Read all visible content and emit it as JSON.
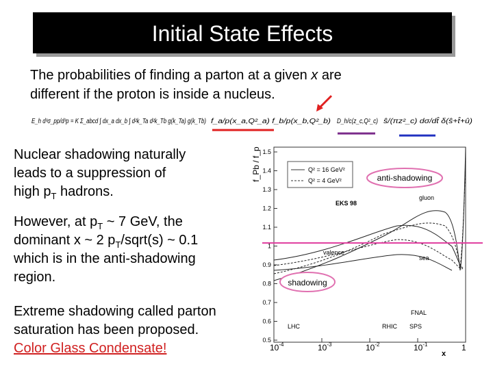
{
  "title": "Initial State Effects",
  "intro": {
    "line1": [
      "The probabilities of finding a parton at a given ",
      "x",
      " are"
    ],
    "line2": "different if the proton is inside a nucleus."
  },
  "formula": [
    "E_h d³σ_pp/d³p = K Σ_abcd ∫ dx_a dx_b ∫ d²k_Ta d²k_Tb g(k_Ta) g(k_Tb)",
    "f_a/p(x_a,Q²_a) f_b/p(x_b,Q²_b)",
    "D_h/c(z_c,Q²_c)",
    "ŝ/(πz²_c) dσ/dt̂ δ(ŝ+t̂+û)"
  ],
  "paragraphs": [
    [
      "Nuclear shadowing naturally",
      "leads to a suppression of",
      [
        "high p",
        "T",
        " hadrons."
      ]
    ],
    [
      [
        "However, at p",
        "T",
        " ~ 7 GeV, the"
      ],
      [
        "dominant x ~ 2 p",
        "T",
        "/sqrt(s) ~ 0.1"
      ],
      "which is in the anti-shadowing",
      "region."
    ],
    [
      "Extreme shadowing called parton",
      "saturation has been proposed."
    ]
  ],
  "link": "Color Glass Condensate!",
  "plot": {
    "ylabel": "f_Pb / f_p",
    "yticks": [
      "1.5",
      "1.4",
      "1.3",
      "1.2",
      "1.1",
      "1",
      "0.9",
      "0.8",
      "0.7",
      "0.6",
      "0.5"
    ],
    "xticks": [
      [
        "10",
        "-4"
      ],
      [
        "10",
        "-3"
      ],
      [
        "10",
        "-2"
      ],
      [
        "10",
        "-1"
      ],
      [
        "1",
        ""
      ]
    ],
    "xlabel": "x",
    "legend": [
      "Q² = 16 GeV²",
      "Q² = 4 GeV²"
    ],
    "labels": [
      "EKS 98",
      "gluon",
      "valence",
      "sea",
      "LHC",
      "RHIC",
      "SPS",
      "FNAL"
    ],
    "annotations": [
      "anti-shadowing",
      "shadowing"
    ]
  }
}
